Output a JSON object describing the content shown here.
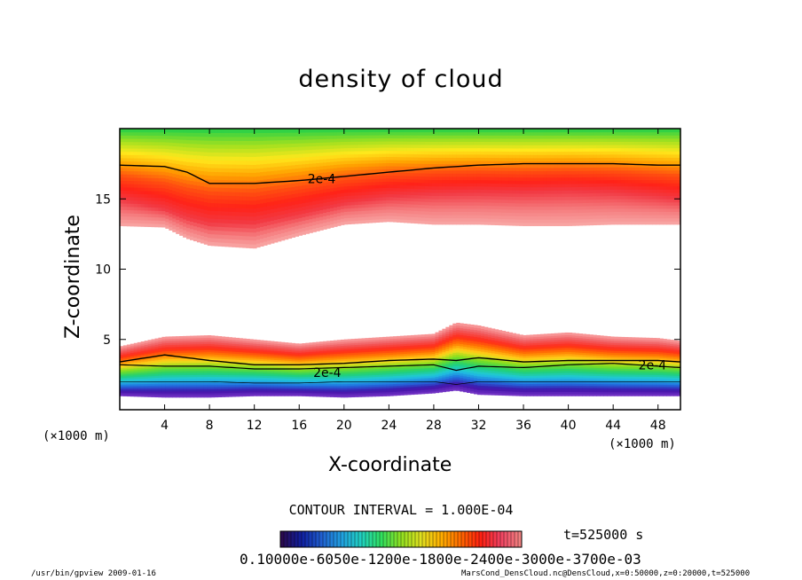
{
  "chart_data": {
    "type": "heatmap",
    "title": "density of cloud",
    "xlabel": "X-coordinate",
    "ylabel": "Z-coordinate",
    "x_unit": "(×1000 m)",
    "y_unit": "(×1000 m)",
    "xlim": [
      0,
      50
    ],
    "ylim": [
      0,
      20
    ],
    "x_ticks": [
      4,
      8,
      12,
      16,
      20,
      24,
      28,
      32,
      36,
      40,
      44,
      48
    ],
    "y_ticks": [
      5,
      10,
      15
    ],
    "contour_label": "2e-4",
    "contour_interval_text": "CONTOUR INTERVAL = 1.000E-04",
    "time_text": "t=525000 s",
    "colorbar_labels_text": "0.10000e-6050e-1200e-1800e-2400e-3000e-3700e-03",
    "upper_layer": {
      "x": [
        0,
        4,
        6,
        8,
        12,
        16,
        20,
        24,
        28,
        32,
        36,
        40,
        44,
        48,
        50
      ],
      "z_top": [
        20,
        20,
        20,
        20,
        20,
        20,
        20,
        20,
        20,
        20,
        20,
        20,
        20,
        20,
        20
      ],
      "z_bottom": [
        13.1,
        13.0,
        12.2,
        11.7,
        11.5,
        12.4,
        13.2,
        13.4,
        13.2,
        13.2,
        13.1,
        13.1,
        13.2,
        13.2,
        13.2
      ],
      "peak_z": [
        15.0,
        14.3,
        13.7,
        13.3,
        13.3,
        13.9,
        14.7,
        15.2,
        15.4,
        15.5,
        15.5,
        15.6,
        15.5,
        15.2,
        15.0
      ],
      "contour_2e4_z": [
        17.4,
        17.3,
        16.9,
        16.1,
        16.1,
        16.3,
        16.6,
        16.9,
        17.2,
        17.4,
        17.5,
        17.5,
        17.5,
        17.4,
        17.4
      ]
    },
    "lower_layer": {
      "x": [
        0,
        4,
        8,
        12,
        16,
        20,
        24,
        28,
        30,
        32,
        36,
        40,
        44,
        48,
        50
      ],
      "z_top": [
        4.5,
        5.2,
        5.3,
        5.0,
        4.7,
        5.0,
        5.2,
        5.4,
        6.2,
        6.0,
        5.3,
        5.5,
        5.2,
        5.1,
        4.9
      ],
      "z_bottom": [
        1.0,
        0.9,
        0.9,
        1.0,
        1.0,
        0.9,
        1.0,
        1.2,
        1.4,
        1.1,
        1.0,
        1.0,
        1.0,
        1.0,
        1.0
      ],
      "contour_upper_z": [
        3.4,
        3.9,
        3.5,
        3.2,
        3.2,
        3.3,
        3.5,
        3.6,
        3.5,
        3.7,
        3.4,
        3.5,
        3.5,
        3.5,
        3.4
      ],
      "contour_lower_z": [
        3.2,
        3.1,
        3.1,
        2.9,
        2.9,
        3.0,
        3.1,
        3.2,
        2.8,
        3.1,
        3.0,
        3.2,
        3.3,
        3.1,
        3.0
      ],
      "thin_contour_z": [
        2.0,
        2.0,
        2.0,
        1.9,
        1.9,
        2.0,
        2.0,
        2.0,
        1.8,
        2.0,
        2.0,
        2.0,
        2.0,
        2.0,
        2.0
      ]
    },
    "colorbar": [
      "#2a0a50",
      "#1020a0",
      "#2060d0",
      "#20a0e0",
      "#20d0c0",
      "#30e060",
      "#90e020",
      "#e0e020",
      "#ffb000",
      "#ff6a00",
      "#ff2010",
      "#f04060",
      "#f08080"
    ]
  },
  "footer": {
    "left": "/usr/bin/gpview   2009-01-16",
    "right": "MarsCond_DensCloud.nc@DensCloud,x=0:50000,z=0:20000,t=525000"
  }
}
